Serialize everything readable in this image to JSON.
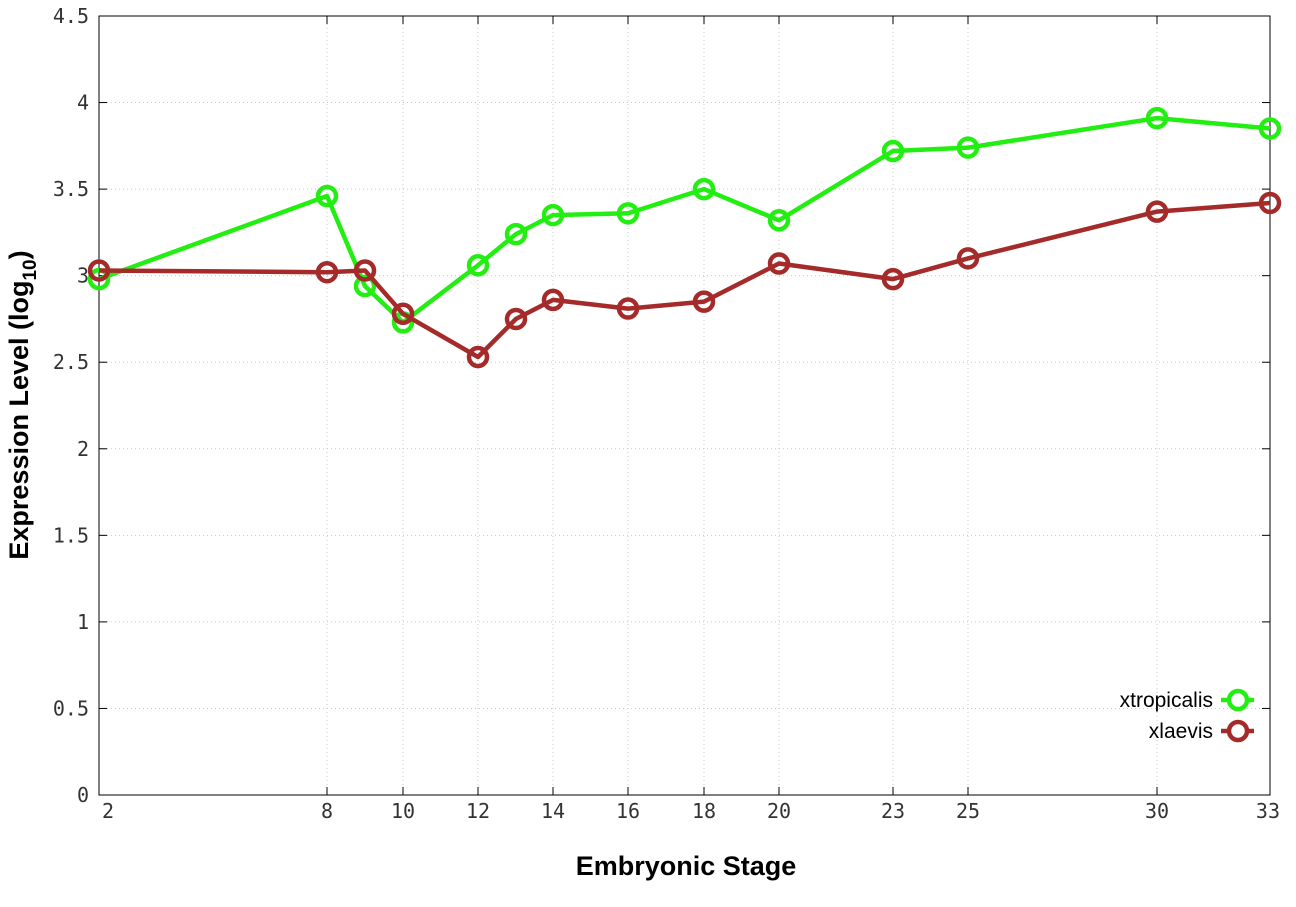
{
  "chart_data": {
    "type": "line",
    "xlabel": "Embryonic Stage",
    "ylabel": "Expression Level (log",
    "ylabel_subscript": "10",
    "ylabel_close": ")",
    "x_ticks": [
      2,
      8,
      10,
      12,
      14,
      16,
      18,
      20,
      23,
      25,
      30,
      33
    ],
    "y_ticks": [
      "0",
      "0.5",
      "1",
      "1.5",
      "2",
      "2.5",
      "3",
      "3.5",
      "4",
      "4.5"
    ],
    "ylim": [
      0,
      4.5
    ],
    "grid": true,
    "legend_position": "bottom-right",
    "x": [
      2,
      8,
      9,
      10,
      12,
      13,
      14,
      16,
      18,
      20,
      23,
      25,
      30,
      33
    ],
    "series": [
      {
        "name": "xtropicalis",
        "color": "#22ee11",
        "values": [
          2.98,
          3.46,
          2.94,
          2.73,
          3.06,
          3.24,
          3.35,
          3.36,
          3.5,
          3.32,
          3.72,
          3.74,
          3.91,
          3.85
        ]
      },
      {
        "name": "xlaevis",
        "color": "#a52a2a",
        "values": [
          3.03,
          3.02,
          3.03,
          2.78,
          2.53,
          2.75,
          2.86,
          2.81,
          2.85,
          3.07,
          2.98,
          3.1,
          3.37,
          3.42
        ]
      }
    ]
  }
}
